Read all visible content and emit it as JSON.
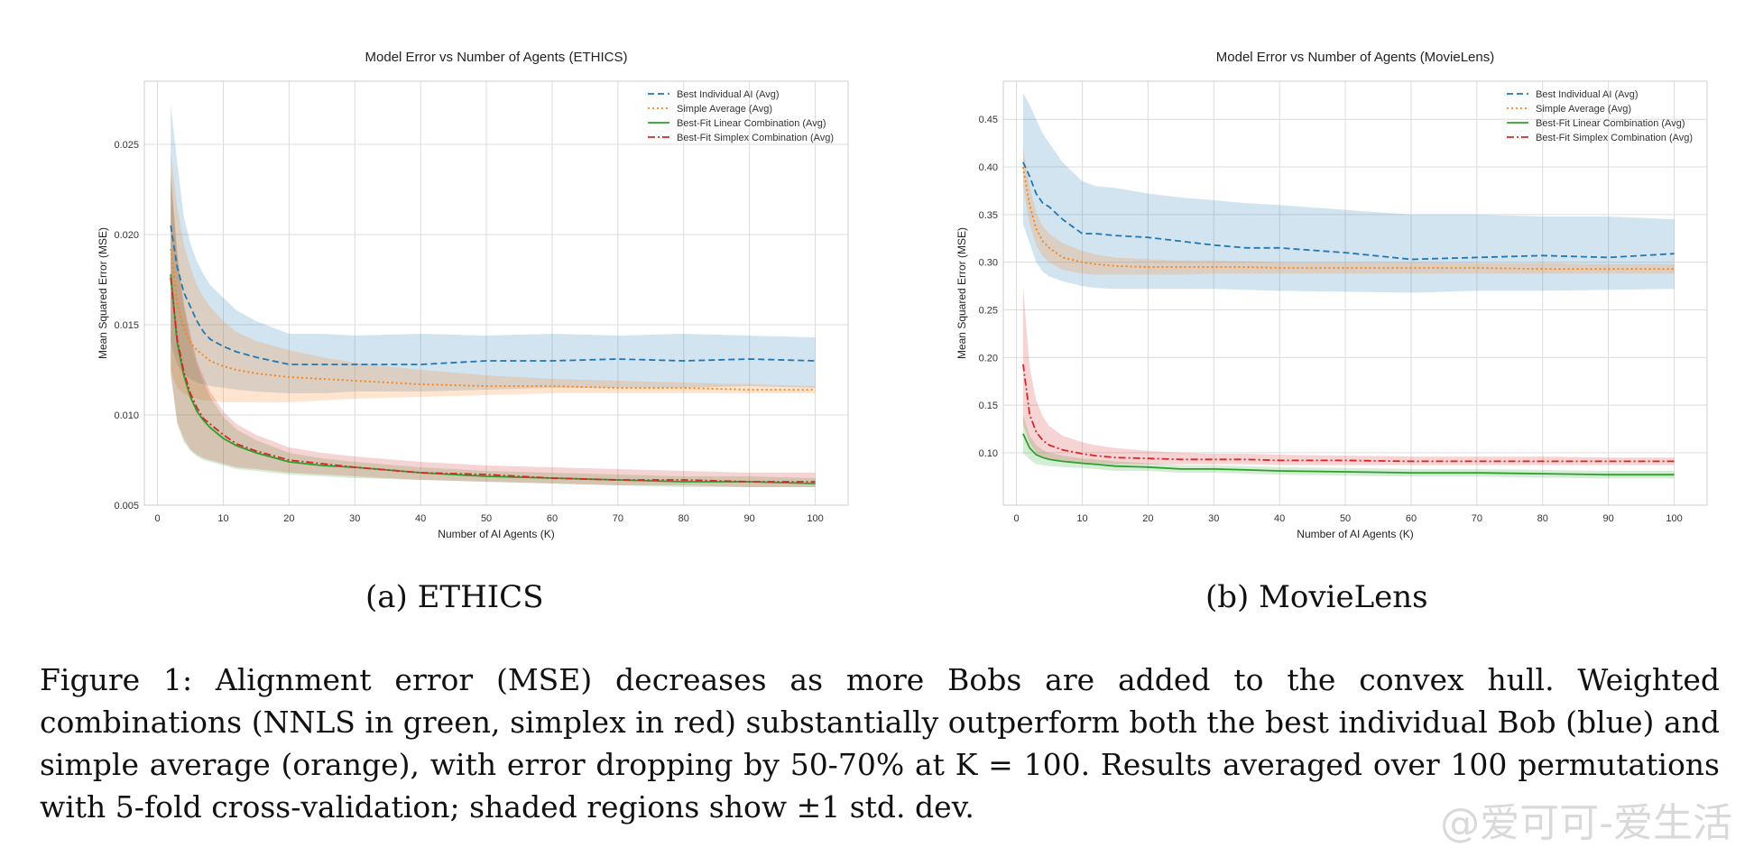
{
  "chart_data": [
    {
      "type": "line",
      "title": "Model Error vs Number of Agents (ETHICS)",
      "xlabel": "Number of AI Agents (K)",
      "ylabel": "Mean Squared Error (MSE)",
      "xlim": [
        -2,
        105
      ],
      "ylim": [
        0.005,
        0.0285
      ],
      "xticks": [
        0,
        10,
        20,
        30,
        40,
        50,
        60,
        70,
        80,
        90,
        100
      ],
      "xtick_labels": [
        "0",
        "10",
        "20",
        "30",
        "40",
        "50",
        "60",
        "70",
        "80",
        "90",
        "100"
      ],
      "yticks": [
        0.005,
        0.01,
        0.015,
        0.02,
        0.025
      ],
      "ytick_labels": [
        "0.005",
        "0.010",
        "0.015",
        "0.020",
        "0.025"
      ],
      "grid": true,
      "legend_position": "top-right",
      "x": [
        2,
        3,
        4,
        5,
        6,
        7,
        8,
        10,
        12,
        15,
        20,
        25,
        30,
        40,
        50,
        60,
        70,
        80,
        90,
        100
      ],
      "series": [
        {
          "name": "Best Individual AI (Avg)",
          "color": "#1f77b4",
          "dash": "dashed",
          "values": [
            0.0205,
            0.0182,
            0.0168,
            0.016,
            0.0152,
            0.0146,
            0.0142,
            0.0138,
            0.0135,
            0.0132,
            0.0128,
            0.0128,
            0.0128,
            0.0128,
            0.013,
            0.013,
            0.0131,
            0.013,
            0.0131,
            0.013
          ],
          "upper": [
            0.0272,
            0.024,
            0.021,
            0.0195,
            0.0185,
            0.0178,
            0.0172,
            0.0165,
            0.0158,
            0.0152,
            0.0145,
            0.0145,
            0.0144,
            0.0145,
            0.0144,
            0.0145,
            0.0144,
            0.0145,
            0.0144,
            0.0143
          ],
          "lower": [
            0.014,
            0.0128,
            0.0122,
            0.012,
            0.0118,
            0.0117,
            0.0116,
            0.0115,
            0.0114,
            0.0113,
            0.0112,
            0.0112,
            0.0113,
            0.0113,
            0.0114,
            0.0115,
            0.0115,
            0.0115,
            0.0116,
            0.0115
          ]
        },
        {
          "name": "Simple Average (Avg)",
          "color": "#ff7f0e",
          "dash": "dotted",
          "values": [
            0.0192,
            0.0162,
            0.0148,
            0.014,
            0.0136,
            0.0133,
            0.013,
            0.0127,
            0.0125,
            0.0123,
            0.0121,
            0.012,
            0.0119,
            0.0117,
            0.0116,
            0.0116,
            0.0115,
            0.0115,
            0.0114,
            0.0114
          ],
          "upper": [
            0.0245,
            0.0215,
            0.0195,
            0.0182,
            0.0172,
            0.0165,
            0.016,
            0.0152,
            0.0146,
            0.0141,
            0.0136,
            0.0132,
            0.0129,
            0.0125,
            0.0122,
            0.012,
            0.0119,
            0.0118,
            0.0117,
            0.0116
          ],
          "lower": [
            0.0125,
            0.0115,
            0.0112,
            0.011,
            0.0109,
            0.0108,
            0.0108,
            0.0107,
            0.0107,
            0.0107,
            0.0107,
            0.0108,
            0.0109,
            0.011,
            0.0111,
            0.0112,
            0.0112,
            0.0112,
            0.0112,
            0.0112
          ]
        },
        {
          "name": "Best-Fit Linear Combination (Avg)",
          "color": "#2ca02c",
          "dash": "solid",
          "values": [
            0.0178,
            0.014,
            0.0122,
            0.011,
            0.0102,
            0.0097,
            0.0093,
            0.0087,
            0.0083,
            0.0079,
            0.0074,
            0.0072,
            0.0071,
            0.0068,
            0.0066,
            0.0065,
            0.0064,
            0.0063,
            0.0063,
            0.0062
          ],
          "upper": [
            0.0235,
            0.0188,
            0.016,
            0.0142,
            0.0128,
            0.0118,
            0.011,
            0.0099,
            0.0092,
            0.0086,
            0.0079,
            0.0076,
            0.0074,
            0.0071,
            0.0069,
            0.0068,
            0.0067,
            0.0066,
            0.0066,
            0.0065
          ],
          "lower": [
            0.0125,
            0.0095,
            0.0085,
            0.008,
            0.0077,
            0.0075,
            0.0074,
            0.0072,
            0.007,
            0.0069,
            0.0067,
            0.0066,
            0.0065,
            0.0064,
            0.0063,
            0.0062,
            0.0061,
            0.006,
            0.006,
            0.006
          ]
        },
        {
          "name": "Best-Fit Simplex Combination (Avg)",
          "color": "#d62728",
          "dash": "dashdot",
          "values": [
            0.0176,
            0.0142,
            0.0124,
            0.0112,
            0.0104,
            0.0098,
            0.0095,
            0.0089,
            0.0084,
            0.008,
            0.0075,
            0.0073,
            0.0071,
            0.0068,
            0.0067,
            0.0065,
            0.0064,
            0.0064,
            0.0063,
            0.0063
          ],
          "upper": [
            0.0232,
            0.019,
            0.0162,
            0.0145,
            0.013,
            0.0121,
            0.0113,
            0.0102,
            0.0095,
            0.0089,
            0.0082,
            0.0079,
            0.0077,
            0.0074,
            0.0072,
            0.0071,
            0.007,
            0.0069,
            0.0068,
            0.0068
          ],
          "lower": [
            0.0122,
            0.0096,
            0.0087,
            0.0081,
            0.0078,
            0.0076,
            0.0075,
            0.0073,
            0.0071,
            0.007,
            0.0068,
            0.0067,
            0.0066,
            0.0064,
            0.0063,
            0.0062,
            0.0061,
            0.0061,
            0.006,
            0.006
          ]
        }
      ]
    },
    {
      "type": "line",
      "title": "Model Error vs Number of Agents (MovieLens)",
      "xlabel": "Number of AI Agents (K)",
      "ylabel": "Mean Squared Error (MSE)",
      "xlim": [
        -2,
        105
      ],
      "ylim": [
        0.045,
        0.49
      ],
      "xticks": [
        0,
        10,
        20,
        30,
        40,
        50,
        60,
        70,
        80,
        90,
        100
      ],
      "xtick_labels": [
        "0",
        "10",
        "20",
        "30",
        "40",
        "50",
        "60",
        "70",
        "80",
        "90",
        "100"
      ],
      "yticks": [
        0.1,
        0.15,
        0.2,
        0.25,
        0.3,
        0.35,
        0.4,
        0.45
      ],
      "ytick_labels": [
        "0.10",
        "0.15",
        "0.20",
        "0.25",
        "0.30",
        "0.35",
        "0.40",
        "0.45"
      ],
      "grid": true,
      "legend_position": "top-right",
      "x": [
        1,
        2,
        3,
        4,
        5,
        7,
        10,
        12,
        15,
        20,
        25,
        30,
        35,
        40,
        50,
        60,
        70,
        80,
        90,
        100
      ],
      "series": [
        {
          "name": "Best Individual AI (Avg)",
          "color": "#1f77b4",
          "dash": "dashed",
          "values": [
            0.405,
            0.39,
            0.372,
            0.362,
            0.358,
            0.345,
            0.33,
            0.33,
            0.328,
            0.326,
            0.322,
            0.318,
            0.315,
            0.315,
            0.31,
            0.303,
            0.305,
            0.307,
            0.305,
            0.309
          ],
          "upper": [
            0.478,
            0.465,
            0.45,
            0.435,
            0.425,
            0.405,
            0.385,
            0.38,
            0.378,
            0.372,
            0.368,
            0.365,
            0.362,
            0.36,
            0.355,
            0.35,
            0.35,
            0.348,
            0.348,
            0.345
          ],
          "lower": [
            0.34,
            0.32,
            0.3,
            0.29,
            0.285,
            0.28,
            0.275,
            0.273,
            0.272,
            0.272,
            0.272,
            0.272,
            0.271,
            0.27,
            0.269,
            0.268,
            0.27,
            0.27,
            0.271,
            0.272
          ]
        },
        {
          "name": "Simple Average (Avg)",
          "color": "#ff7f0e",
          "dash": "dotted",
          "values": [
            0.4,
            0.36,
            0.335,
            0.322,
            0.315,
            0.305,
            0.3,
            0.298,
            0.296,
            0.295,
            0.295,
            0.295,
            0.295,
            0.294,
            0.294,
            0.294,
            0.294,
            0.293,
            0.293,
            0.293
          ],
          "upper": [
            0.42,
            0.38,
            0.352,
            0.338,
            0.33,
            0.32,
            0.312,
            0.308,
            0.305,
            0.303,
            0.302,
            0.302,
            0.301,
            0.3,
            0.3,
            0.3,
            0.299,
            0.299,
            0.298,
            0.298
          ],
          "lower": [
            0.38,
            0.34,
            0.318,
            0.306,
            0.3,
            0.292,
            0.288,
            0.287,
            0.287,
            0.287,
            0.287,
            0.288,
            0.288,
            0.288,
            0.288,
            0.288,
            0.288,
            0.288,
            0.288,
            0.288
          ]
        },
        {
          "name": "Best-Fit Linear Combination (Avg)",
          "color": "#2ca02c",
          "dash": "solid",
          "values": [
            0.12,
            0.105,
            0.098,
            0.095,
            0.093,
            0.091,
            0.089,
            0.088,
            0.086,
            0.085,
            0.083,
            0.083,
            0.082,
            0.081,
            0.08,
            0.079,
            0.079,
            0.078,
            0.077,
            0.077
          ],
          "upper": [
            0.14,
            0.118,
            0.108,
            0.103,
            0.1,
            0.097,
            0.094,
            0.093,
            0.091,
            0.089,
            0.087,
            0.087,
            0.086,
            0.085,
            0.084,
            0.083,
            0.083,
            0.082,
            0.081,
            0.081
          ],
          "lower": [
            0.1,
            0.093,
            0.088,
            0.087,
            0.086,
            0.085,
            0.084,
            0.083,
            0.081,
            0.081,
            0.079,
            0.079,
            0.078,
            0.077,
            0.076,
            0.075,
            0.075,
            0.074,
            0.073,
            0.073
          ]
        },
        {
          "name": "Best-Fit Simplex Combination (Avg)",
          "color": "#d62728",
          "dash": "dashdot",
          "values": [
            0.193,
            0.14,
            0.122,
            0.113,
            0.108,
            0.103,
            0.099,
            0.097,
            0.095,
            0.094,
            0.093,
            0.093,
            0.093,
            0.092,
            0.092,
            0.091,
            0.091,
            0.091,
            0.091,
            0.091
          ],
          "upper": [
            0.275,
            0.19,
            0.155,
            0.138,
            0.128,
            0.118,
            0.111,
            0.108,
            0.105,
            0.102,
            0.1,
            0.099,
            0.099,
            0.098,
            0.097,
            0.096,
            0.096,
            0.096,
            0.095,
            0.095
          ],
          "lower": [
            0.13,
            0.11,
            0.1,
            0.096,
            0.094,
            0.092,
            0.09,
            0.089,
            0.088,
            0.088,
            0.088,
            0.088,
            0.088,
            0.087,
            0.087,
            0.087,
            0.087,
            0.087,
            0.087,
            0.087
          ]
        }
      ]
    }
  ],
  "subcaptions": {
    "a": "(a) ETHICS",
    "b": "(b) MovieLens"
  },
  "caption": "Figure 1: Alignment error (MSE) decreases as more Bobs are added to the convex hull. Weighted combinations (NNLS in green, simplex in red) substantially outperform both the best individual Bob (blue) and simple average (orange), with error dropping by 50-70% at K = 100. Results averaged over 100 permutations with 5-fold cross-validation; shaded regions show ±1 std. dev.",
  "watermark": "@爱可可-爱生活"
}
